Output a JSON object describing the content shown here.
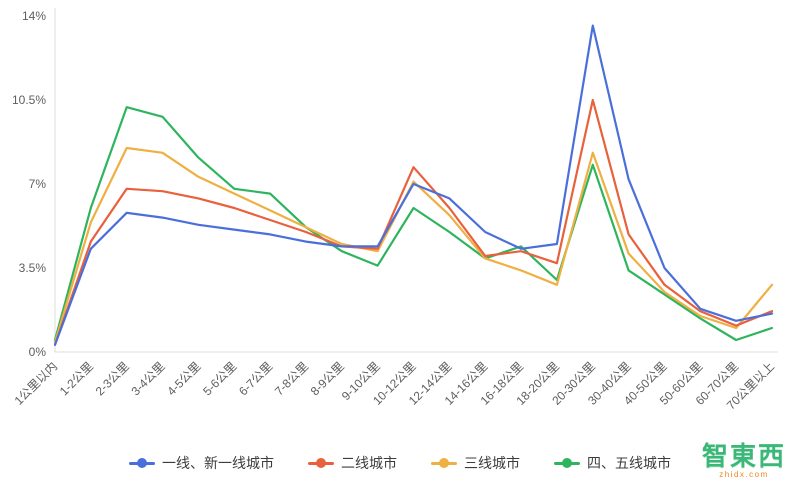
{
  "watermark": {
    "text": "智東西",
    "subtext": "zhidx.com"
  },
  "chart_data": {
    "type": "line",
    "title": "",
    "xlabel": "",
    "ylabel": "",
    "ylim": [
      0,
      14
    ],
    "grid": false,
    "legend_position": "bottom",
    "yticks": [
      {
        "value": 0,
        "label": "0%"
      },
      {
        "value": 3.5,
        "label": "3.5%"
      },
      {
        "value": 7,
        "label": "7%"
      },
      {
        "value": 10.5,
        "label": "10.5%"
      },
      {
        "value": 14,
        "label": "14%"
      }
    ],
    "categories": [
      "1公里以内",
      "1-2公里",
      "2-3公里",
      "3-4公里",
      "4-5公里",
      "5-6公里",
      "6-7公里",
      "7-8公里",
      "8-9公里",
      "9-10公里",
      "10-12公里",
      "12-14公里",
      "14-16公里",
      "16-18公里",
      "18-20公里",
      "20-30公里",
      "30-40公里",
      "40-50公里",
      "50-60公里",
      "60-70公里",
      "70公里以上"
    ],
    "series": [
      {
        "name": "一线、新一线城市",
        "color": "#4a6fdb",
        "values": [
          0.3,
          4.3,
          5.8,
          5.6,
          5.3,
          5.1,
          4.9,
          4.6,
          4.4,
          4.4,
          7.0,
          6.4,
          5.0,
          4.3,
          4.5,
          13.6,
          7.2,
          3.5,
          1.8,
          1.3,
          1.6
        ]
      },
      {
        "name": "二线城市",
        "color": "#e8613c",
        "values": [
          0.3,
          4.6,
          6.8,
          6.7,
          6.4,
          6.0,
          5.5,
          5.0,
          4.4,
          4.3,
          7.7,
          6.0,
          4.0,
          4.2,
          3.7,
          10.5,
          4.9,
          2.8,
          1.7,
          1.1,
          1.7
        ]
      },
      {
        "name": "三线城市",
        "color": "#efaf42",
        "values": [
          0.4,
          5.4,
          8.5,
          8.3,
          7.3,
          6.6,
          5.9,
          5.2,
          4.5,
          4.2,
          7.1,
          5.7,
          3.9,
          3.4,
          2.8,
          8.3,
          4.1,
          2.5,
          1.5,
          1.0,
          2.8
        ]
      },
      {
        "name": "四、五线城市",
        "color": "#2fb45e",
        "values": [
          0.5,
          6.0,
          10.2,
          9.8,
          8.1,
          6.8,
          6.6,
          5.2,
          4.2,
          3.6,
          6.0,
          5.0,
          3.9,
          4.4,
          3.0,
          7.8,
          3.4,
          2.4,
          1.4,
          0.5,
          1.0
        ]
      }
    ]
  }
}
